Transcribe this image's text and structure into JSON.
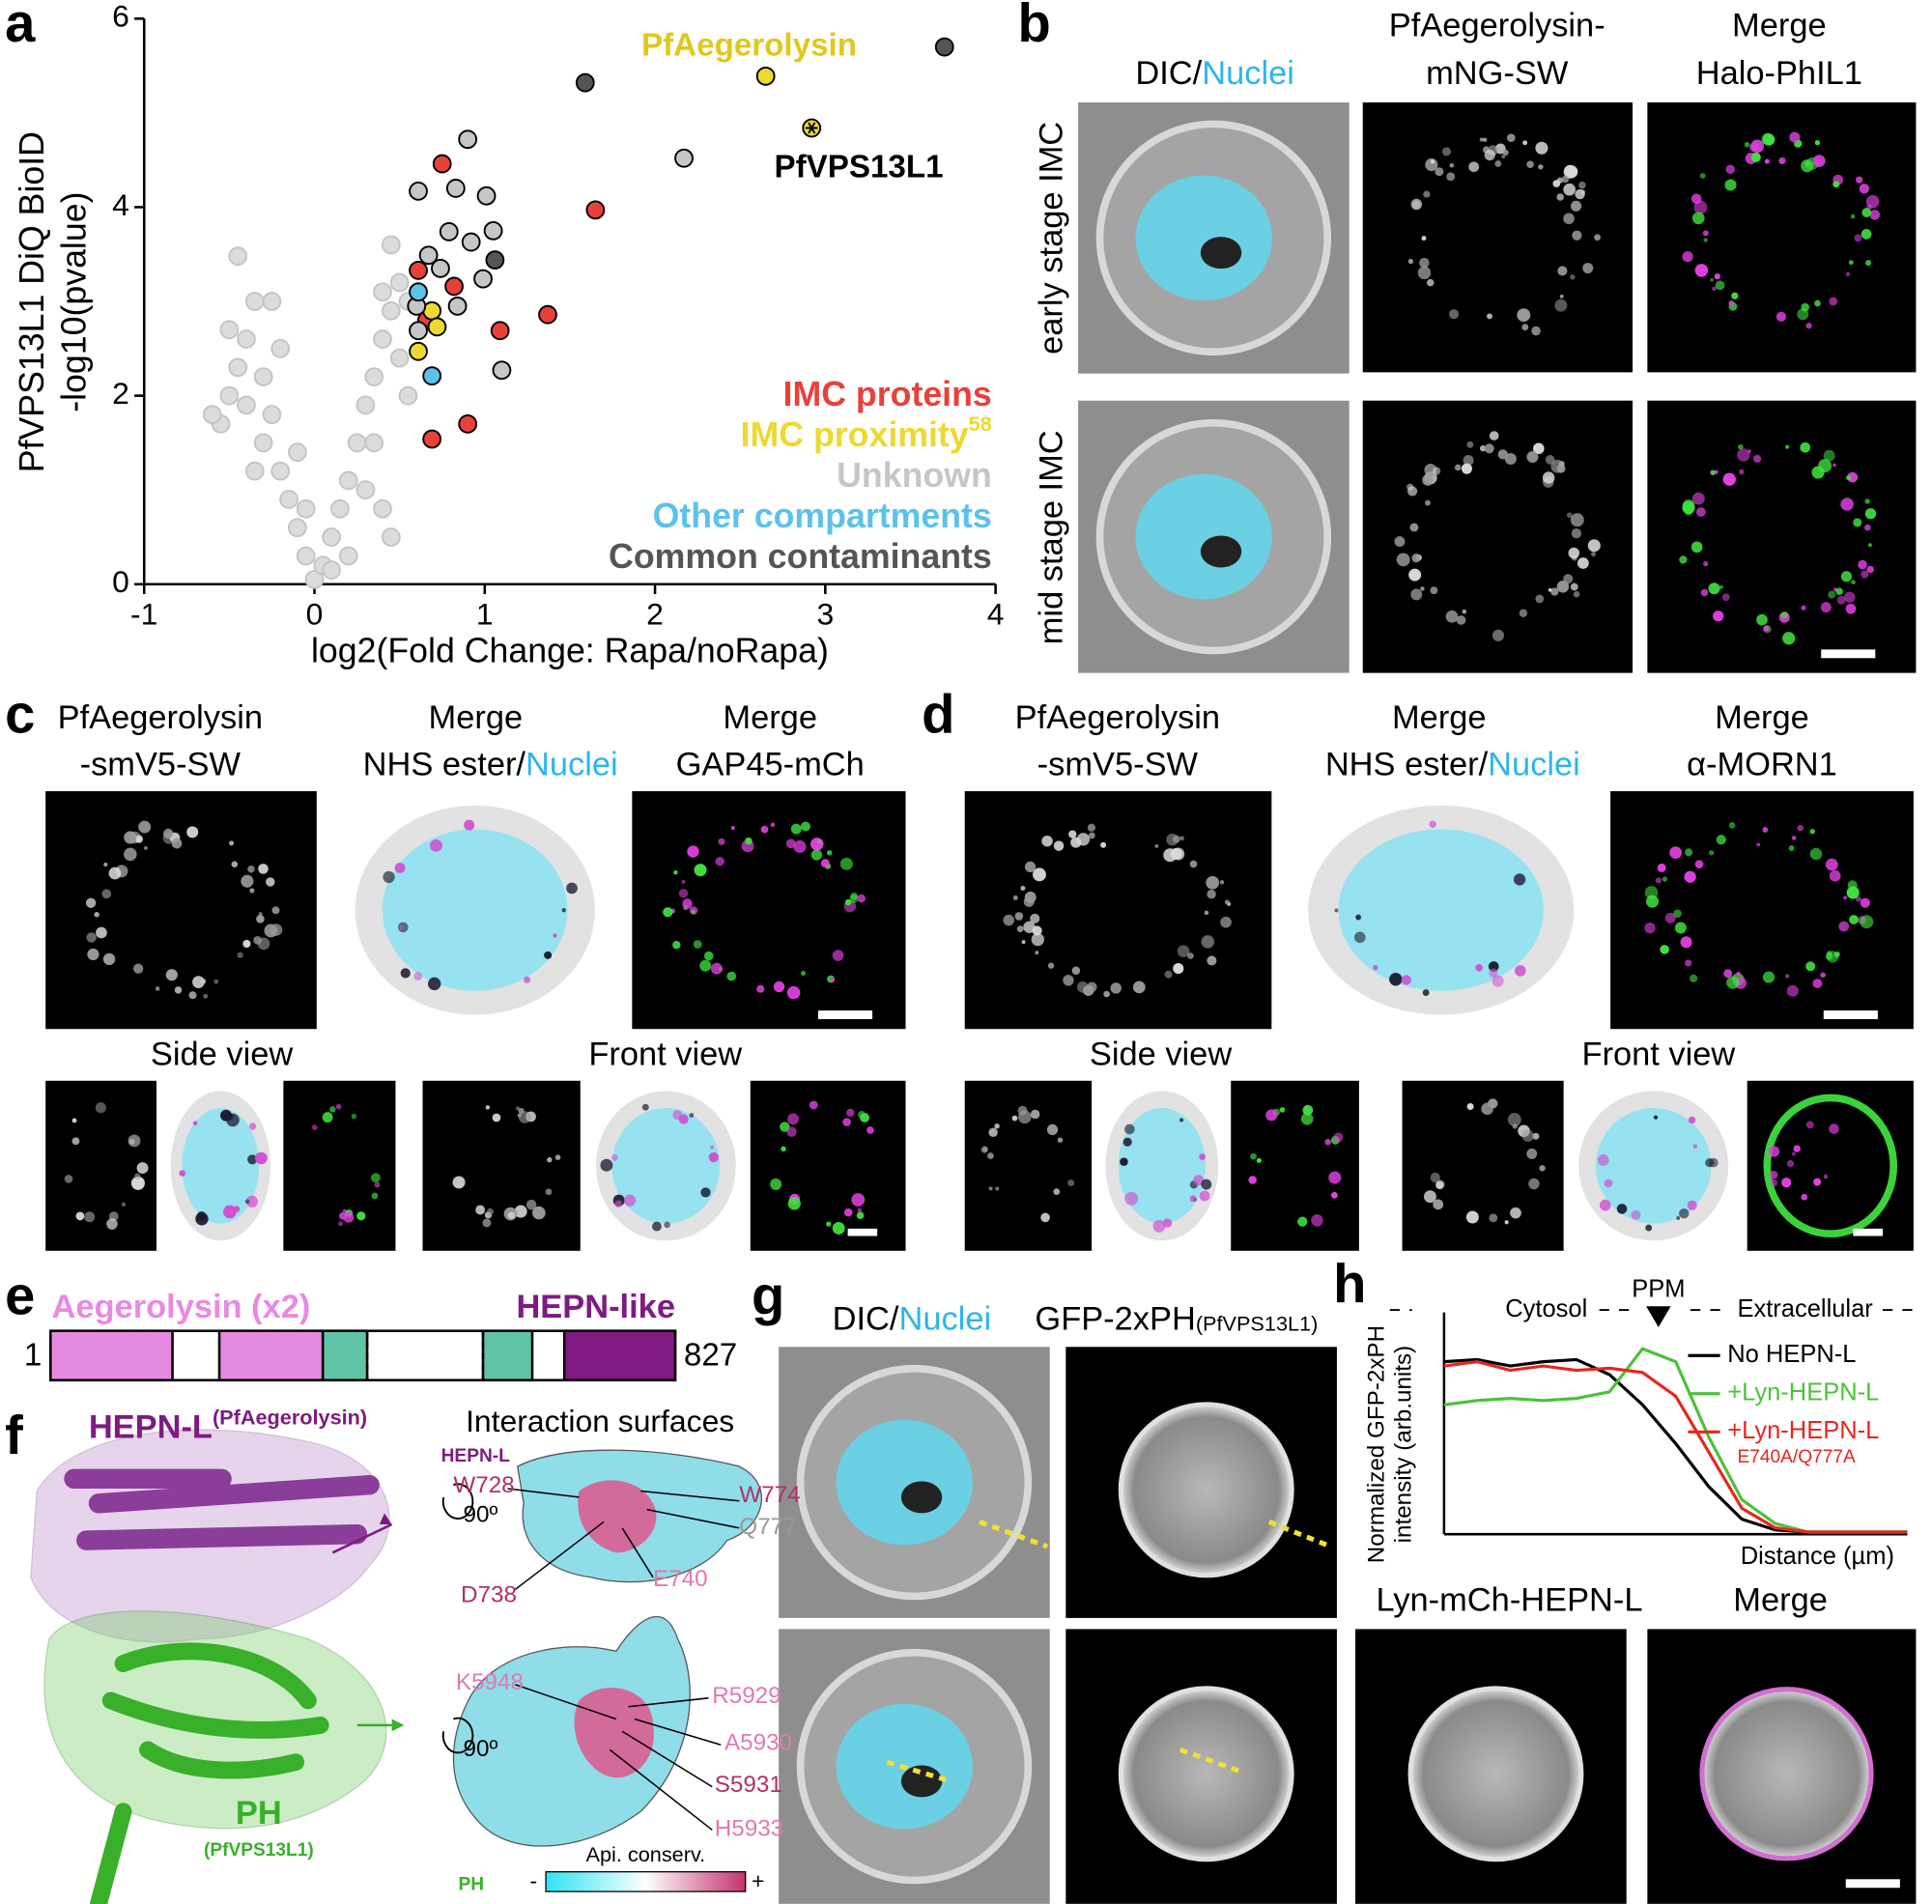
{
  "panel_labels": [
    "a",
    "b",
    "c",
    "d",
    "e",
    "f",
    "g",
    "h"
  ],
  "chart_data": [
    {
      "type": "scatter",
      "xlabel": "log2(Fold Change: Rapa/noRapa)",
      "ylabel": [
        "PfVPS13L1 DiQ BioID",
        "-log10(pvalue)"
      ],
      "xlim": [
        -1,
        4
      ],
      "ylim": [
        0,
        6
      ],
      "xticks": [
        -1,
        0,
        1,
        2,
        3,
        4
      ],
      "yticks": [
        0,
        2,
        4,
        6
      ],
      "legend": "lower right",
      "annotations": [
        "PfAegerolysin",
        "PfVPS13L1"
      ],
      "series": [
        {
          "color": "#dcdcdc",
          "edgecolor": "#c4c4c4",
          "x": [
            -0.55,
            -0.5,
            -0.45,
            -0.4,
            -0.35,
            -0.3,
            -0.3,
            -0.25,
            -0.2,
            -0.2,
            -0.15,
            -0.1,
            -0.1,
            -0.05,
            -0.4,
            -0.35,
            -0.6,
            0,
            0.05,
            0.1,
            0.15,
            0.2,
            0.25,
            0.3,
            0.35,
            0.4,
            0.45,
            0.5,
            0.45,
            0.55,
            0.35,
            0.3,
            0.5,
            0.4,
            0.2,
            0.45,
            -0.05,
            0.1,
            0.55,
            0.4,
            -0.5,
            -0.25,
            -0.45
          ],
          "values": [
            1.7,
            2.0,
            2.3,
            2.6,
            3.0,
            2.2,
            1.5,
            1.8,
            1.2,
            2.5,
            0.9,
            0.6,
            1.4,
            0.3,
            1.9,
            1.2,
            1.8,
            0.05,
            0.2,
            0.5,
            0.8,
            1.1,
            1.5,
            1.9,
            2.2,
            2.6,
            2.9,
            3.2,
            3.6,
            3.0,
            1.5,
            1.0,
            2.4,
            0.8,
            0.3,
            0.5,
            0.8,
            0.15,
            2.0,
            3.1,
            2.7,
            3.0,
            3.48
          ]
        },
        {
          "name": "IMC proteins",
          "color": "#e8413a",
          "edgecolor": "#000000",
          "x": [
            0.75,
            1.65,
            0.61,
            0.82,
            1.37,
            0.66,
            1.09,
            0.9,
            0.69
          ],
          "values": [
            4.46,
            3.97,
            3.33,
            3.16,
            2.86,
            2.8,
            2.69,
            1.7,
            1.54
          ]
        },
        {
          "name": "IMC proximity",
          "superscript": "58",
          "color": "#ecd931",
          "edgecolor": "#000000",
          "x": [
            2.65,
            2.92,
            0.69,
            0.72,
            0.61
          ],
          "values": [
            5.39,
            4.84,
            2.9,
            2.73,
            2.47
          ]
        },
        {
          "name": "Unknown",
          "color": "#c6c6c6",
          "edgecolor": "#000000",
          "x": [
            0.9,
            2.17,
            0.61,
            0.83,
            1.01,
            1.05,
            0.79,
            0.92,
            0.67,
            0.74,
            0.99,
            0.84,
            0.61,
            1.1,
            0.6
          ],
          "values": [
            4.72,
            4.52,
            4.17,
            4.2,
            4.12,
            3.75,
            3.74,
            3.63,
            3.49,
            3.35,
            3.24,
            2.95,
            2.69,
            2.27,
            2.95
          ]
        },
        {
          "name": "Other compartments",
          "color": "#5bc2ea",
          "edgecolor": "#000000",
          "x": [
            0.61,
            0.69
          ],
          "values": [
            3.1,
            2.21
          ]
        },
        {
          "name": "Common contaminants",
          "color": "#555555",
          "edgecolor": "#000000",
          "x": [
            3.7,
            1.59,
            1.06
          ],
          "values": [
            5.7,
            5.32,
            3.44
          ]
        }
      ]
    },
    {
      "type": "line",
      "ylabel": [
        "Normalized GFP-2xPH",
        "intensity (arb.units)"
      ],
      "xlabel": "Distance (µm)",
      "xlim": [
        0,
        14
      ],
      "ylim": [
        0,
        1
      ],
      "regions": [
        "Cytosol",
        "PPM",
        "Extracellular"
      ],
      "legend": "upper right",
      "x": [
        0,
        1,
        2,
        3,
        4,
        5,
        6,
        7,
        8,
        9,
        10,
        11,
        12,
        13,
        14
      ],
      "series": [
        {
          "name": "No HEPN-L",
          "color": "#000000",
          "values": [
            0.8,
            0.81,
            0.78,
            0.8,
            0.81,
            0.74,
            0.6,
            0.42,
            0.22,
            0.07,
            0.02,
            0.01,
            0.01,
            0.01,
            0.01
          ]
        },
        {
          "name": "+Lyn-HEPN-L",
          "color": "#4cc23a",
          "values": [
            0.6,
            0.62,
            0.63,
            0.62,
            0.63,
            0.66,
            0.86,
            0.8,
            0.45,
            0.16,
            0.05,
            0.01,
            0.01,
            0.01,
            0.01
          ]
        },
        {
          "name": "+Lyn-HEPN-L",
          "note": "E740A/Q777A",
          "color": "#e8261e",
          "values": [
            0.78,
            0.8,
            0.76,
            0.78,
            0.76,
            0.77,
            0.75,
            0.64,
            0.38,
            0.12,
            0.03,
            0.01,
            0.01,
            0.01,
            0.01
          ]
        }
      ]
    }
  ],
  "panel_b": {
    "columns": [
      [
        "DIC/",
        "Nuclei"
      ],
      [
        "PfAegerolysin-",
        "mNG-SW"
      ],
      [
        "Merge",
        "Halo-PhIL1"
      ]
    ],
    "rows": [
      "early stage IMC",
      "mid stage IMC"
    ]
  },
  "panel_c": {
    "columns": [
      [
        "PfAegerolysin",
        "-smV5-SW"
      ],
      [
        "Merge",
        "NHS ester/",
        "Nuclei"
      ],
      [
        "Merge",
        "GAP45-mCh"
      ]
    ],
    "views": [
      "Side view",
      "Front view"
    ]
  },
  "panel_d": {
    "columns": [
      [
        "PfAegerolysin",
        "-smV5-SW"
      ],
      [
        "Merge",
        "NHS ester/",
        "Nuclei"
      ],
      [
        "Merge",
        "α-MORN1"
      ]
    ],
    "views": [
      "Side view",
      "Front view"
    ]
  },
  "panel_e": {
    "domains": [
      "Aegerolysin (x2)",
      "HEPN-like"
    ],
    "start": 1,
    "end": 827
  },
  "panel_f": {
    "title": "HEPN-L",
    "title_superscript": "(PfAegerolysin)",
    "interaction_title": "Interaction surfaces",
    "hepn_label": "HEPN-L",
    "rotation": "90º",
    "hepn_residues": [
      "W728",
      "W774",
      "Q777",
      "D738",
      "E740"
    ],
    "ph_residues": [
      "K5948",
      "R5929",
      "A5930",
      "S5931",
      "H5933"
    ],
    "ph_label": "PH",
    "ph_subtitle": "(PfVPS13L1)",
    "ph_small_label": "PH",
    "scale_title": "Api. conserv.",
    "scale_ends": [
      "-",
      "+"
    ]
  },
  "panel_g": {
    "columns": [
      [
        "DIC/",
        "Nuclei"
      ],
      [
        "GFP-2xPH",
        "(PfVPS13L1)"
      ],
      [
        "Lyn-mCh-HEPN-L"
      ],
      [
        "Merge"
      ]
    ]
  }
}
